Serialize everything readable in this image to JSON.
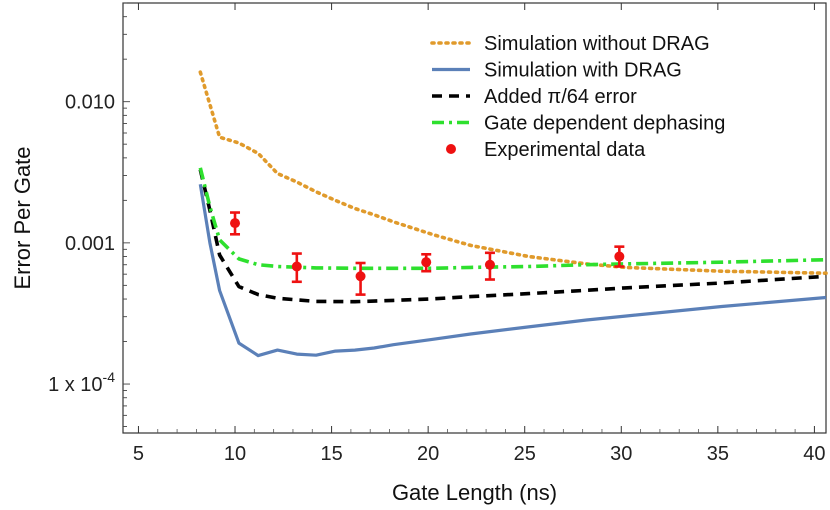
{
  "chart_data": {
    "type": "line",
    "xlabel": "Gate Length (ns)",
    "ylabel": "Error Per Gate",
    "x_range": [
      4.2,
      40.6
    ],
    "y_range": [
      4.5e-05,
      0.05
    ],
    "y_scale": "log",
    "x_ticks": [
      {
        "value": 5,
        "label": "5"
      },
      {
        "value": 10,
        "label": "10"
      },
      {
        "value": 15,
        "label": "15"
      },
      {
        "value": 20,
        "label": "20"
      },
      {
        "value": 25,
        "label": "25"
      },
      {
        "value": 30,
        "label": "30"
      },
      {
        "value": 35,
        "label": "35"
      },
      {
        "value": 40,
        "label": "40"
      }
    ],
    "y_ticks": [
      {
        "value": 0.01,
        "label": "0.010"
      },
      {
        "value": 0.001,
        "label": "0.001"
      },
      {
        "value": 0.0001,
        "label": "1 x 10",
        "exponent": "-4"
      }
    ],
    "legend_position": "top-right",
    "series": [
      {
        "name": "Simulation without DRAG",
        "color": "#e09a2b",
        "style": "dotted",
        "x": [
          8.2,
          9.2,
          10.2,
          11.2,
          12.2,
          13.2,
          14.2,
          15.2,
          16.2,
          17.2,
          18.2,
          20.2,
          22.2,
          25.2,
          28.2,
          30.2,
          35.2,
          40.6
        ],
        "y": [
          0.0162,
          0.0056,
          0.0051,
          0.0043,
          0.0031,
          0.0027,
          0.0023,
          0.002,
          0.00175,
          0.00158,
          0.00141,
          0.00115,
          0.00096,
          0.0008,
          0.00071,
          0.00067,
          0.00063,
          0.00061
        ]
      },
      {
        "name": "Simulation with DRAG",
        "color": "#5b80b8",
        "style": "solid",
        "x": [
          8.2,
          8.7,
          9.2,
          10.2,
          11.2,
          12.2,
          13.2,
          14.2,
          15.2,
          16.2,
          17.2,
          18.2,
          20.2,
          22.2,
          25.2,
          28.2,
          30.2,
          35.2,
          40.6
        ],
        "y": [
          0.0026,
          0.001,
          0.00046,
          0.000195,
          0.000159,
          0.000174,
          0.000163,
          0.00016,
          0.000171,
          0.000174,
          0.00018,
          0.00019,
          0.000207,
          0.000226,
          0.000254,
          0.000284,
          0.000303,
          0.000354,
          0.00041
        ]
      },
      {
        "name": "Added π/64 error",
        "color": "#000000",
        "style": "dashed",
        "x": [
          8.2,
          8.7,
          9.2,
          10.2,
          11.2,
          12.2,
          14.2,
          16.2,
          18.2,
          20.2,
          22.2,
          25.2,
          28.2,
          30.2,
          35.2,
          40.6
        ],
        "y": [
          0.0033,
          0.0017,
          0.00082,
          0.00049,
          0.00043,
          0.000405,
          0.000385,
          0.000383,
          0.000391,
          0.000401,
          0.000416,
          0.000437,
          0.000461,
          0.00048,
          0.00052,
          0.00058
        ]
      },
      {
        "name": "Gate dependent dephasing",
        "color": "#2ee02e",
        "style": "dashdot",
        "x": [
          8.2,
          8.7,
          9.2,
          10.2,
          11.2,
          12.2,
          14.2,
          16.2,
          18.2,
          20.2,
          22.2,
          25.2,
          28.2,
          30.2,
          35.2,
          40.6
        ],
        "y": [
          0.0034,
          0.0018,
          0.00105,
          0.00077,
          0.0007,
          0.00068,
          0.000665,
          0.00066,
          0.00066,
          0.00066,
          0.00067,
          0.00068,
          0.0007,
          0.00071,
          0.00073,
          0.00076
        ]
      },
      {
        "name": "Experimental data",
        "color": "#ee1111",
        "style": "points",
        "x": [
          10,
          13.2,
          16.5,
          19.9,
          23.2,
          29.9
        ],
        "y": [
          0.00138,
          0.00068,
          0.00058,
          0.00073,
          0.0007,
          0.0008
        ],
        "error_low": [
          0.00115,
          0.00053,
          0.00043,
          0.00063,
          0.00055,
          0.00068
        ],
        "error_high": [
          0.00164,
          0.00084,
          0.00072,
          0.00083,
          0.00085,
          0.00094
        ]
      }
    ]
  }
}
